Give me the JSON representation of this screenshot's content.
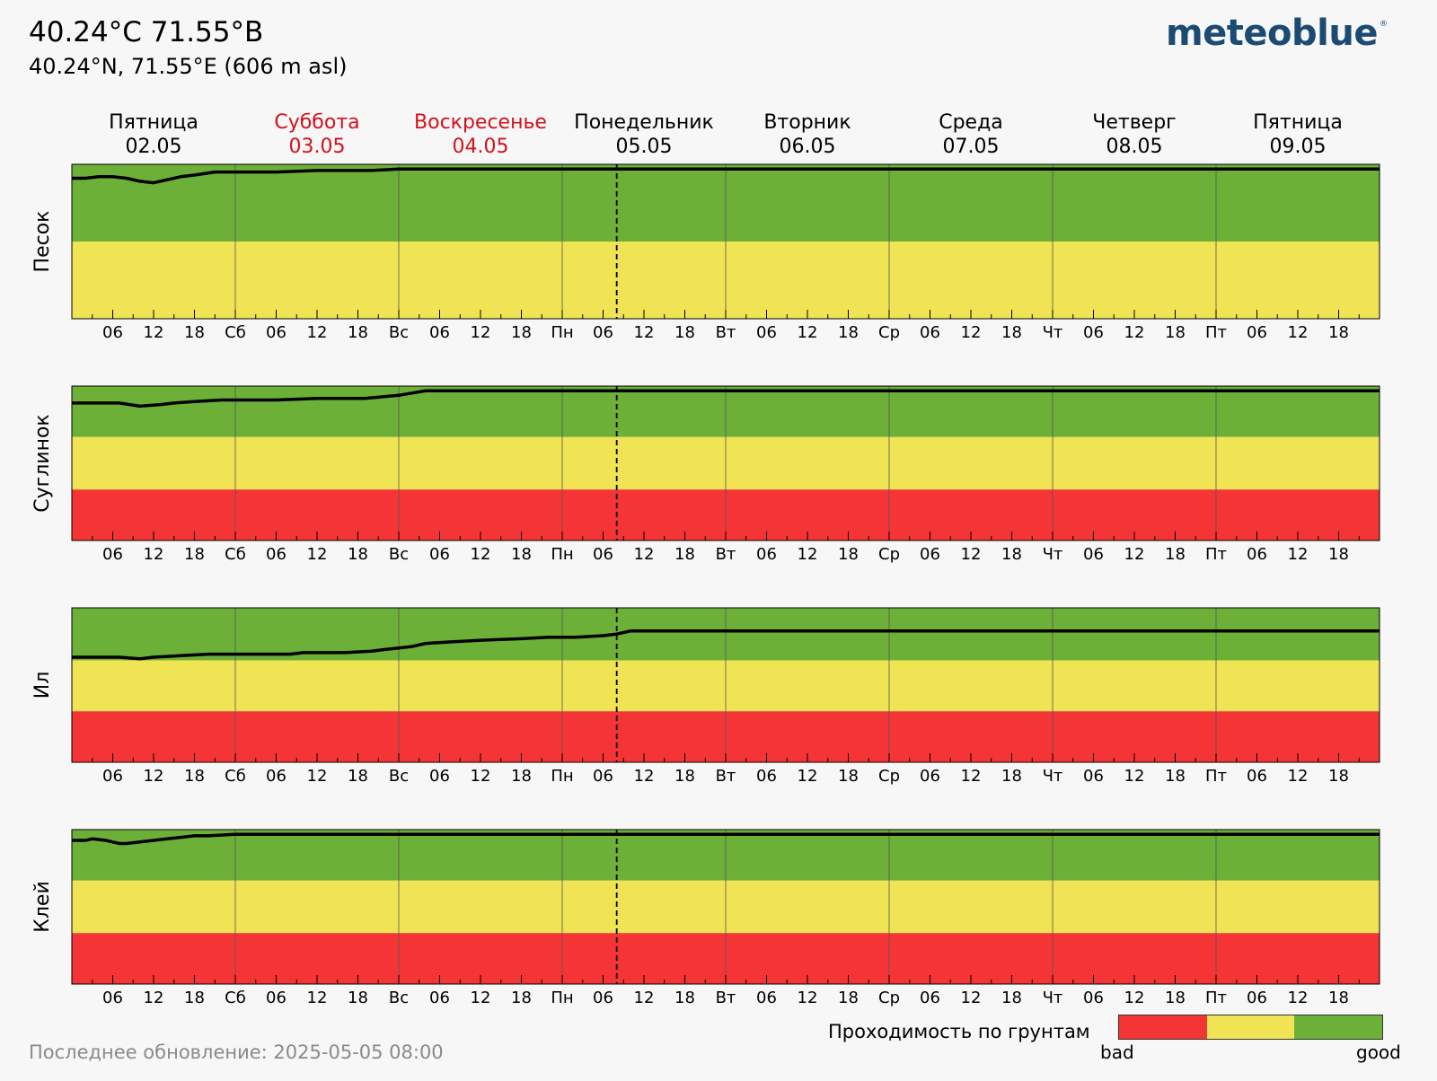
{
  "header": {
    "title": "40.24°C 71.55°B",
    "subtitle": "40.24°N, 71.55°E (606 m asl)"
  },
  "logo": {
    "text": "meteoblue",
    "mark": "®"
  },
  "chart_data": {
    "type": "line",
    "days": [
      {
        "name": "Пятница",
        "date": "02.05",
        "weekend": false
      },
      {
        "name": "Суббота",
        "date": "03.05",
        "weekend": true
      },
      {
        "name": "Воскресенье",
        "date": "04.05",
        "weekend": true
      },
      {
        "name": "Понедельник",
        "date": "05.05",
        "weekend": false
      },
      {
        "name": "Вторник",
        "date": "06.05",
        "weekend": false
      },
      {
        "name": "Среда",
        "date": "07.05",
        "weekend": false
      },
      {
        "name": "Четверг",
        "date": "08.05",
        "weekend": false
      },
      {
        "name": "Пятница",
        "date": "09.05",
        "weekend": false
      }
    ],
    "day_abbr": [
      "",
      "Сб",
      "Вс",
      "Пн",
      "Вт",
      "Ср",
      "Чт",
      "Пт"
    ],
    "hour_ticks": [
      "06",
      "12",
      "18"
    ],
    "x_range_hours": [
      0,
      192
    ],
    "now_hour": 80,
    "y_range": [
      0,
      1
    ],
    "grid": true,
    "panels": [
      {
        "name": "Песок",
        "bands": [
          {
            "rating": "good",
            "from": 0.5,
            "to": 1
          },
          {
            "rating": "medium",
            "from": 0,
            "to": 0.5
          }
        ],
        "series": [
          [
            0,
            0.91
          ],
          [
            2,
            0.91
          ],
          [
            4,
            0.92
          ],
          [
            6,
            0.92
          ],
          [
            8,
            0.91
          ],
          [
            10,
            0.89
          ],
          [
            12,
            0.88
          ],
          [
            14,
            0.9
          ],
          [
            16,
            0.92
          ],
          [
            18,
            0.93
          ],
          [
            21,
            0.95
          ],
          [
            26,
            0.95
          ],
          [
            30,
            0.95
          ],
          [
            36,
            0.96
          ],
          [
            44,
            0.96
          ],
          [
            48,
            0.97
          ],
          [
            192,
            0.97
          ]
        ]
      },
      {
        "name": "Суглинок",
        "bands": [
          {
            "rating": "good",
            "from": 0.67,
            "to": 1
          },
          {
            "rating": "medium",
            "from": 0.33,
            "to": 0.67
          },
          {
            "rating": "bad",
            "from": 0,
            "to": 0.33
          }
        ],
        "series": [
          [
            0,
            0.89
          ],
          [
            5,
            0.89
          ],
          [
            7,
            0.89
          ],
          [
            10,
            0.87
          ],
          [
            13,
            0.88
          ],
          [
            15,
            0.89
          ],
          [
            18,
            0.9
          ],
          [
            22,
            0.91
          ],
          [
            30,
            0.91
          ],
          [
            36,
            0.92
          ],
          [
            40,
            0.92
          ],
          [
            43,
            0.92
          ],
          [
            48,
            0.94
          ],
          [
            52,
            0.97
          ],
          [
            192,
            0.97
          ]
        ]
      },
      {
        "name": "Ил",
        "bands": [
          {
            "rating": "good",
            "from": 0.66,
            "to": 1
          },
          {
            "rating": "medium",
            "from": 0.33,
            "to": 0.66
          },
          {
            "rating": "bad",
            "from": 0,
            "to": 0.33
          }
        ],
        "series": [
          [
            0,
            0.68
          ],
          [
            5,
            0.68
          ],
          [
            7,
            0.68
          ],
          [
            10,
            0.67
          ],
          [
            12,
            0.68
          ],
          [
            16,
            0.69
          ],
          [
            20,
            0.7
          ],
          [
            26,
            0.7
          ],
          [
            32,
            0.7
          ],
          [
            34,
            0.71
          ],
          [
            40,
            0.71
          ],
          [
            44,
            0.72
          ],
          [
            46,
            0.73
          ],
          [
            48,
            0.74
          ],
          [
            50,
            0.75
          ],
          [
            52,
            0.77
          ],
          [
            56,
            0.78
          ],
          [
            60,
            0.79
          ],
          [
            66,
            0.8
          ],
          [
            70,
            0.81
          ],
          [
            74,
            0.81
          ],
          [
            78,
            0.82
          ],
          [
            80,
            0.83
          ],
          [
            82,
            0.85
          ],
          [
            192,
            0.85
          ]
        ]
      },
      {
        "name": "Клей",
        "bands": [
          {
            "rating": "good",
            "from": 0.67,
            "to": 1
          },
          {
            "rating": "medium",
            "from": 0.33,
            "to": 0.67
          },
          {
            "rating": "bad",
            "from": 0,
            "to": 0.33
          }
        ],
        "series": [
          [
            0,
            0.93
          ],
          [
            2,
            0.93
          ],
          [
            3,
            0.94
          ],
          [
            5,
            0.93
          ],
          [
            6,
            0.92
          ],
          [
            7,
            0.91
          ],
          [
            8,
            0.91
          ],
          [
            10,
            0.92
          ],
          [
            12,
            0.93
          ],
          [
            14,
            0.94
          ],
          [
            16,
            0.95
          ],
          [
            18,
            0.96
          ],
          [
            20,
            0.96
          ],
          [
            24,
            0.97
          ],
          [
            30,
            0.97
          ],
          [
            48,
            0.97
          ],
          [
            192,
            0.97
          ]
        ]
      }
    ],
    "colors": {
      "good": "#6cb038",
      "medium": "#f0e354",
      "bad": "#f53535",
      "line": "#000000",
      "weekend": "#d2121a"
    }
  },
  "legend": {
    "label": "Проходимость по грунтам",
    "low": "bad",
    "high": "good"
  },
  "footer": {
    "updated": "Последнее обновление: 2025-05-05 08:00"
  }
}
